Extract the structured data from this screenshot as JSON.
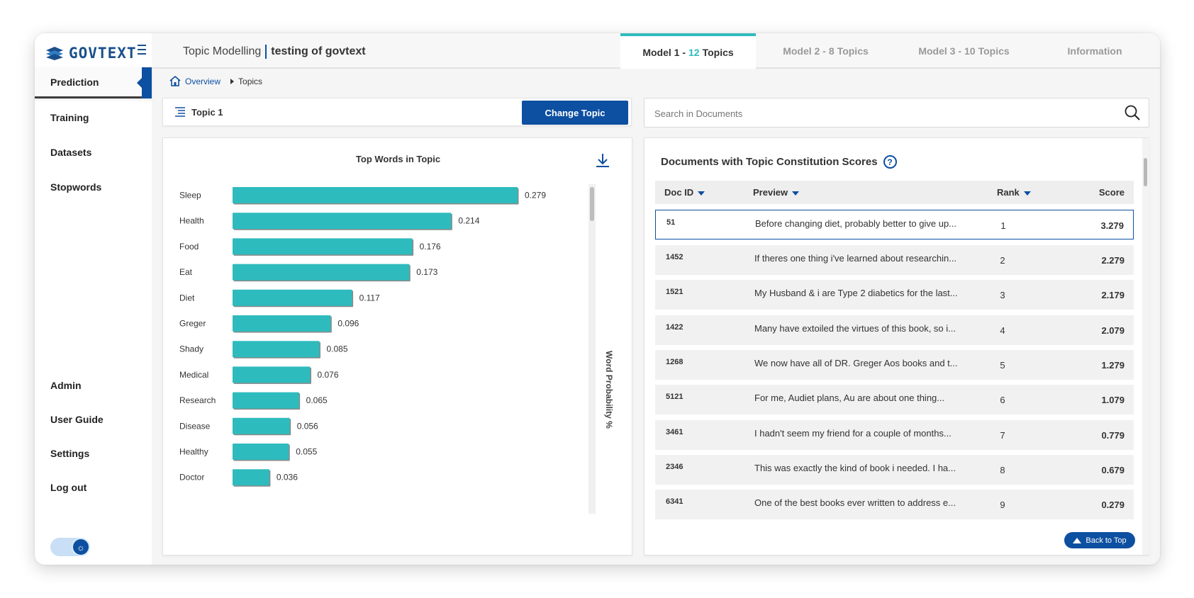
{
  "brand": {
    "name": "GOVTEXT"
  },
  "sidebar": {
    "items": [
      {
        "label": "Prediction"
      },
      {
        "label": "Training"
      },
      {
        "label": "Datasets"
      },
      {
        "label": "Stopwords"
      }
    ],
    "bottom_items": [
      {
        "label": "Admin"
      },
      {
        "label": "User Guide"
      },
      {
        "label": "Settings"
      },
      {
        "label": "Log out"
      }
    ]
  },
  "header": {
    "section": "Topic Modelling",
    "project": "testing of govtext",
    "tabs": [
      {
        "prefix": "Model 1 -",
        "count": "12",
        "suffix": "Topics"
      },
      {
        "prefix": "Model 2 -",
        "count": "8",
        "suffix": "Topics"
      },
      {
        "prefix": "Model 3 -",
        "count": "10",
        "suffix": "Topics"
      },
      {
        "label": "Information"
      }
    ]
  },
  "breadcrumb": {
    "home": "Overview",
    "current": "Topics"
  },
  "topic_bar": {
    "topic": "Topic 1",
    "change_label": "Change Topic"
  },
  "search": {
    "placeholder": "Search in Documents",
    "value": ""
  },
  "chart_data": {
    "type": "bar",
    "orientation": "horizontal",
    "title": "Top Words in Topic",
    "xlabel": "",
    "ylabel": "Word Probability %",
    "categories": [
      "Sleep",
      "Health",
      "Food",
      "Eat",
      "Diet",
      "Greger",
      "Shady",
      "Medical",
      "Research",
      "Disease",
      "Healthy",
      "Doctor"
    ],
    "values": [
      0.279,
      0.214,
      0.176,
      0.173,
      0.117,
      0.096,
      0.085,
      0.076,
      0.065,
      0.056,
      0.055,
      0.036
    ],
    "value_labels": [
      "0.279",
      "0.214",
      "0.176",
      "0.173",
      "0.117",
      "0.096",
      "0.085",
      "0.076",
      "0.065",
      "0.056",
      "0.055",
      "0.036"
    ],
    "xlim": [
      0,
      0.279
    ],
    "bar_color": "#2ebbbd"
  },
  "documents": {
    "title": "Documents with Topic Constitution Scores",
    "help": "?",
    "columns": {
      "id": "Doc ID",
      "preview": "Preview",
      "rank": "Rank",
      "score": "Score"
    },
    "rows": [
      {
        "id": "51",
        "preview": "Before changing diet, probably better to give up...",
        "rank": "1",
        "score": "3.279"
      },
      {
        "id": "1452",
        "preview": "If theres one thing i've learned about researchin...",
        "rank": "2",
        "score": "2.279"
      },
      {
        "id": "1521",
        "preview": "My Husband & i are Type 2 diabetics for the last...",
        "rank": "3",
        "score": "2.179"
      },
      {
        "id": "1422",
        "preview": "Many have extoiled the virtues of this book, so i...",
        "rank": "4",
        "score": "2.079"
      },
      {
        "id": "1268",
        "preview": "We now have all of DR. Greger Aos books and t...",
        "rank": "5",
        "score": "1.279"
      },
      {
        "id": "5121",
        "preview": "For me, Audiet plans, Au are about one thing...",
        "rank": "6",
        "score": "1.079"
      },
      {
        "id": "3461",
        "preview": "I hadn't seem my friend for a couple of months...",
        "rank": "7",
        "score": "0.779"
      },
      {
        "id": "2346",
        "preview": "This was exactly the kind of book i needed. I ha...",
        "rank": "8",
        "score": "0.679"
      },
      {
        "id": "6341",
        "preview": "One of the best books ever written to address e...",
        "rank": "9",
        "score": "0.279"
      }
    ],
    "back_to_top": "Back to Top"
  },
  "colors": {
    "primary": "#0d4fa0",
    "accent": "#2ebbbd"
  }
}
